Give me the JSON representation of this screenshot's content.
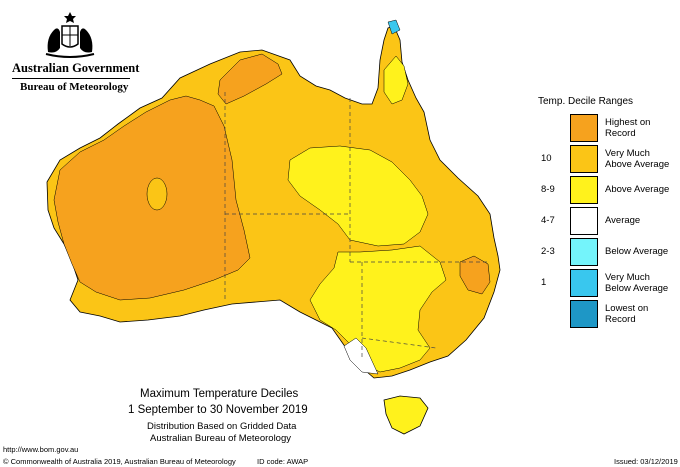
{
  "header": {
    "government": "Australian Government",
    "bureau": "Bureau of Meteorology"
  },
  "legend": {
    "title": "Temp. Decile Ranges",
    "items": [
      {
        "code": "",
        "label_line1": "Highest on",
        "label_line2": "Record",
        "color": "#f6a21e"
      },
      {
        "code": "10",
        "label_line1": "Very Much",
        "label_line2": "Above Average",
        "color": "#fbc516"
      },
      {
        "code": "8-9",
        "label_line1": "Above Average",
        "label_line2": "",
        "color": "#fff21c"
      },
      {
        "code": "4-7",
        "label_line1": "Average",
        "label_line2": "",
        "color": "#ffffff"
      },
      {
        "code": "2-3",
        "label_line1": "Below Average",
        "label_line2": "",
        "color": "#74f4fb"
      },
      {
        "code": "1",
        "label_line1": "Very Much",
        "label_line2": "Below Average",
        "color": "#39c7ee"
      },
      {
        "code": "",
        "label_line1": "Lowest on",
        "label_line2": "Record",
        "color": "#1e97c6"
      }
    ]
  },
  "map_title": {
    "line1": "Maximum Temperature Deciles",
    "line2": "1 September to 30 November 2019",
    "line3": "Distribution Based on Gridded Data",
    "line4": "Australian Bureau of Meteorology"
  },
  "footer": {
    "url": "http://www.bom.gov.au",
    "copyright": "© Commonwealth of Australia 2019, Australian Bureau of Meteorology",
    "id_code": "ID code: AWAP",
    "issued": "Issued: 03/12/2019"
  },
  "colors": {
    "highest": "#f6a21e",
    "very_much_above": "#fbc516",
    "above": "#fff21c",
    "average": "#ffffff",
    "below": "#74f4fb",
    "very_much_below": "#39c7ee",
    "lowest": "#1e97c6"
  }
}
